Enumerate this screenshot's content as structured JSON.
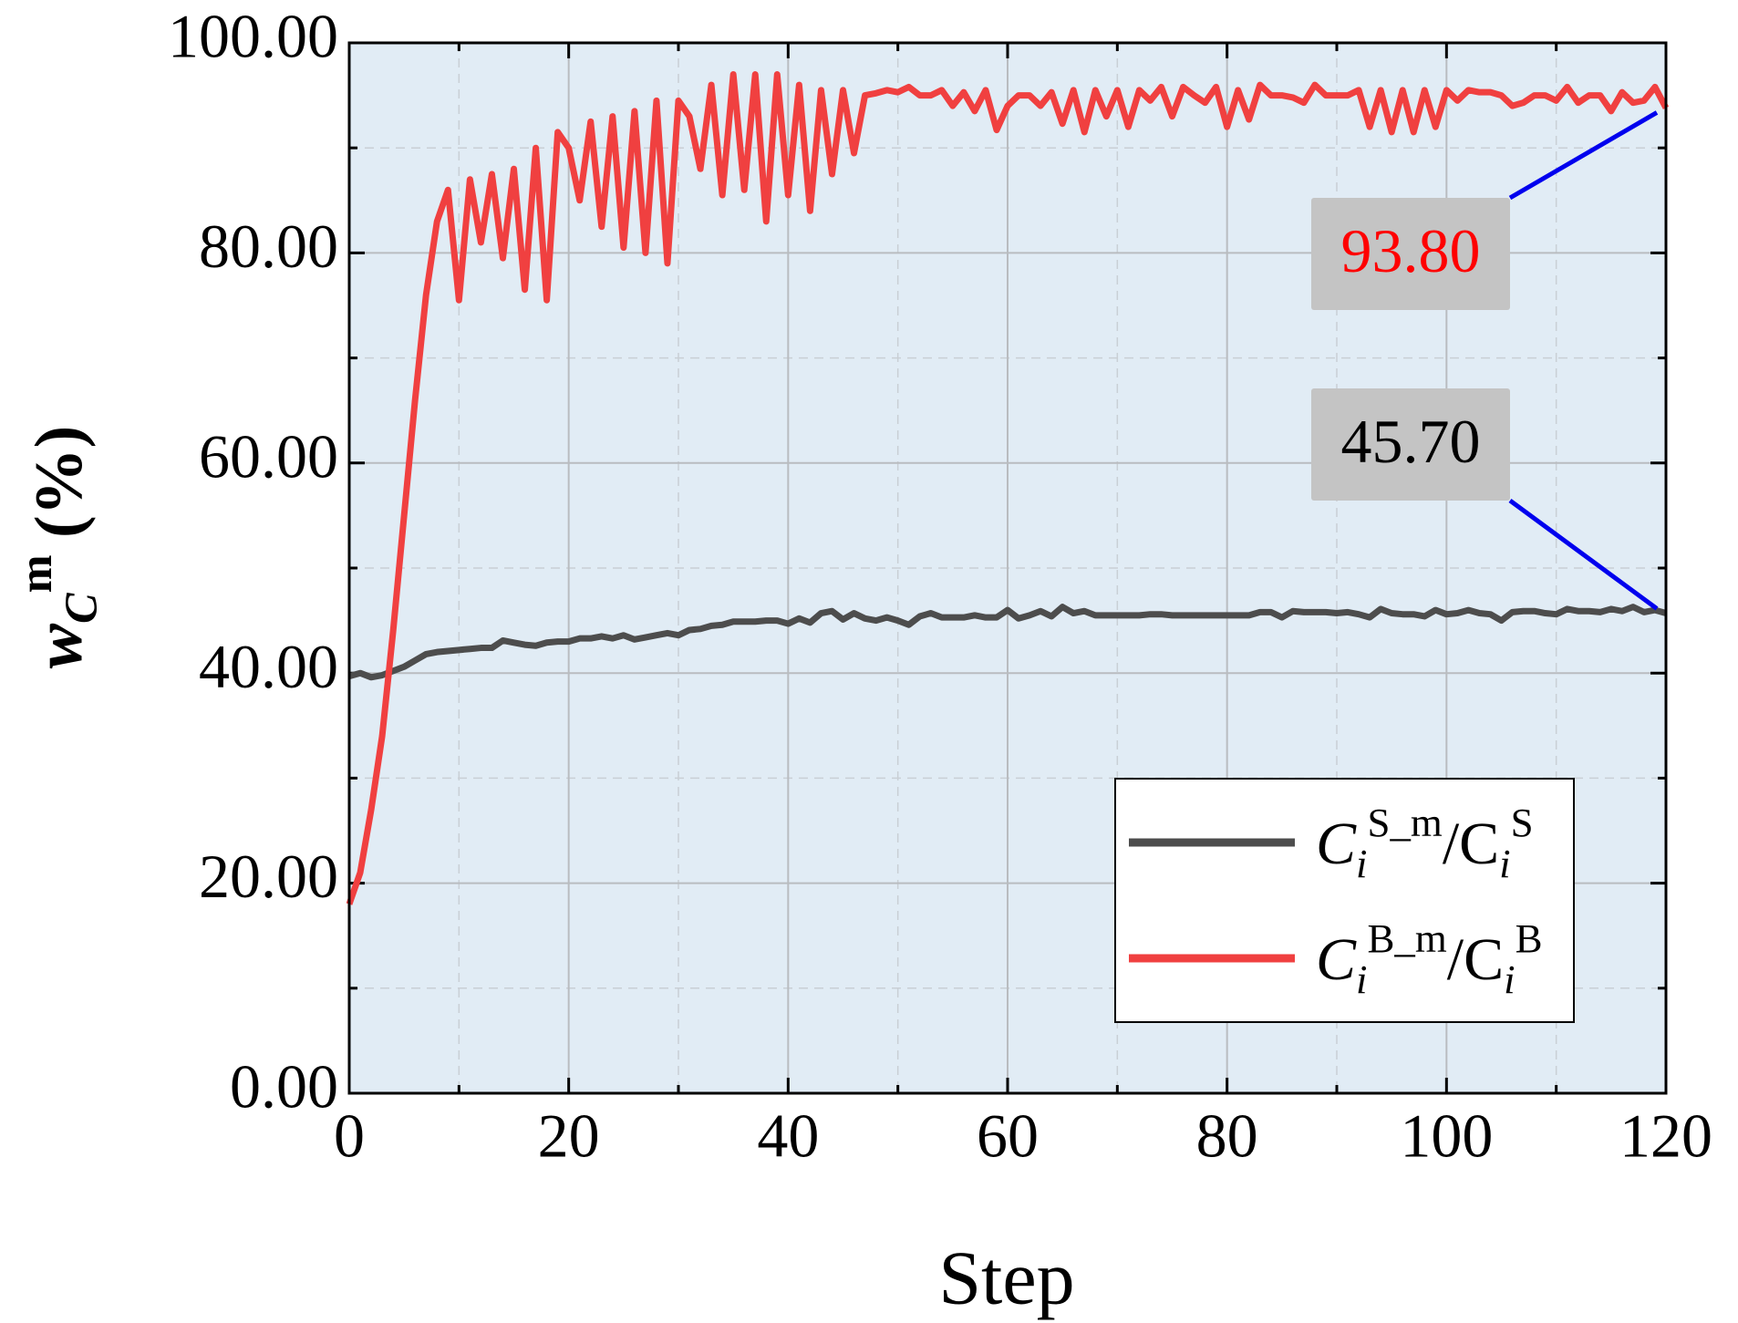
{
  "chart_data": {
    "type": "line",
    "x_label": "Step",
    "y_label": "w_{C}^{m} (%)",
    "x": [
      0,
      1,
      2,
      3,
      4,
      5,
      6,
      7,
      8,
      9,
      10,
      11,
      12,
      13,
      14,
      15,
      16,
      17,
      18,
      19,
      20,
      21,
      22,
      23,
      24,
      25,
      26,
      27,
      28,
      29,
      30,
      31,
      32,
      33,
      34,
      35,
      36,
      37,
      38,
      39,
      40,
      41,
      42,
      43,
      44,
      45,
      46,
      47,
      48,
      49,
      50,
      51,
      52,
      53,
      54,
      55,
      56,
      57,
      58,
      59,
      60,
      61,
      62,
      63,
      64,
      65,
      66,
      67,
      68,
      69,
      70,
      71,
      72,
      73,
      74,
      75,
      76,
      77,
      78,
      79,
      80,
      81,
      82,
      83,
      84,
      85,
      86,
      87,
      88,
      89,
      90,
      91,
      92,
      93,
      94,
      95,
      96,
      97,
      98,
      99,
      100,
      101,
      102,
      103,
      104,
      105,
      106,
      107,
      108,
      109,
      110,
      111,
      112,
      113,
      114,
      115,
      116,
      117,
      118,
      119,
      120
    ],
    "series": [
      {
        "name": "C_{i}^{S_m}/C_{i}^{S}",
        "color": "#4d4d4d",
        "values": [
          39.7,
          40,
          39.6,
          39.8,
          40.2,
          40.6,
          41.2,
          41.8,
          42,
          42.1,
          42.2,
          42.3,
          42.4,
          42.4,
          43.1,
          42.9,
          42.7,
          42.6,
          42.9,
          43,
          43,
          43.3,
          43.3,
          43.5,
          43.3,
          43.6,
          43.2,
          43.4,
          43.6,
          43.8,
          43.6,
          44.1,
          44.2,
          44.5,
          44.6,
          44.9,
          44.9,
          44.9,
          45,
          45,
          44.7,
          45.2,
          44.8,
          45.7,
          45.9,
          45.1,
          45.7,
          45.2,
          45,
          45.3,
          45,
          44.6,
          45.4,
          45.7,
          45.3,
          45.3,
          45.3,
          45.5,
          45.3,
          45.3,
          46,
          45.2,
          45.5,
          45.9,
          45.4,
          46.3,
          45.7,
          45.9,
          45.5,
          45.5,
          45.5,
          45.5,
          45.5,
          45.6,
          45.6,
          45.5,
          45.5,
          45.5,
          45.5,
          45.5,
          45.5,
          45.5,
          45.5,
          45.8,
          45.8,
          45.3,
          45.9,
          45.8,
          45.8,
          45.8,
          45.7,
          45.8,
          45.6,
          45.3,
          46.1,
          45.7,
          45.6,
          45.6,
          45.4,
          46,
          45.6,
          45.7,
          46,
          45.7,
          45.6,
          45,
          45.8,
          45.9,
          45.9,
          45.7,
          45.6,
          46.1,
          45.9,
          45.9,
          45.8,
          46.1,
          45.9,
          46.3,
          45.8,
          46,
          45.7
        ]
      },
      {
        "name": "C_{i}^{B_m}/C_{i}^{B}",
        "color": "#f04040",
        "values": [
          18,
          21,
          27,
          34,
          44,
          55,
          66,
          76,
          83,
          86,
          75.5,
          87,
          81,
          87.5,
          79.5,
          88,
          76.5,
          90,
          75.5,
          91.5,
          90,
          85,
          92.5,
          82.5,
          93,
          80.5,
          93.5,
          80,
          94.5,
          79,
          94.5,
          93,
          88,
          96,
          85.5,
          97,
          86,
          97,
          83,
          97,
          85.5,
          96,
          84,
          95.5,
          87.5,
          95.5,
          89.5,
          95,
          95.2,
          95.5,
          95.3,
          95.8,
          95,
          95,
          95.5,
          94,
          95.3,
          93.5,
          95.5,
          91.7,
          94,
          95,
          95,
          94,
          95.3,
          92.3,
          95.5,
          91.5,
          95.5,
          93,
          95.5,
          92,
          95.5,
          94.5,
          95.8,
          93,
          95.8,
          95,
          94.3,
          95.8,
          92,
          95.5,
          92.7,
          96,
          95,
          95,
          94.8,
          94.3,
          96,
          95,
          95,
          95,
          95.5,
          92,
          95.5,
          91.5,
          95.5,
          91.5,
          95.5,
          92,
          95.5,
          94.5,
          95.5,
          95.3,
          95.3,
          95,
          94,
          94.3,
          95,
          95,
          94.5,
          95.8,
          94.3,
          95,
          95,
          93.5,
          95.3,
          94.3,
          94.5,
          95.8,
          93.8
        ]
      }
    ],
    "xlim": [
      0,
      120
    ],
    "ylim": [
      0,
      100
    ],
    "xticks": [
      0,
      20,
      40,
      60,
      80,
      100,
      120
    ],
    "yticks": [
      {
        "value": 0,
        "label": "0.00"
      },
      {
        "value": 20,
        "label": "20.00"
      },
      {
        "value": 40,
        "label": "40.00"
      },
      {
        "value": 60,
        "label": "60.00"
      },
      {
        "value": 80,
        "label": "80.00"
      },
      {
        "value": 100,
        "label": "100.00"
      }
    ],
    "xminorticks": [
      10,
      30,
      50,
      70,
      90,
      110
    ],
    "yminorticks": [
      10,
      30,
      50,
      70,
      90
    ],
    "grid": true,
    "legend": "lower right",
    "annotations": [
      {
        "label": "93.80",
        "value": 93.8,
        "x": 120,
        "color": "#ff0000"
      },
      {
        "label": "45.70",
        "value": 45.7,
        "x": 120,
        "color": "#000000"
      }
    ]
  }
}
